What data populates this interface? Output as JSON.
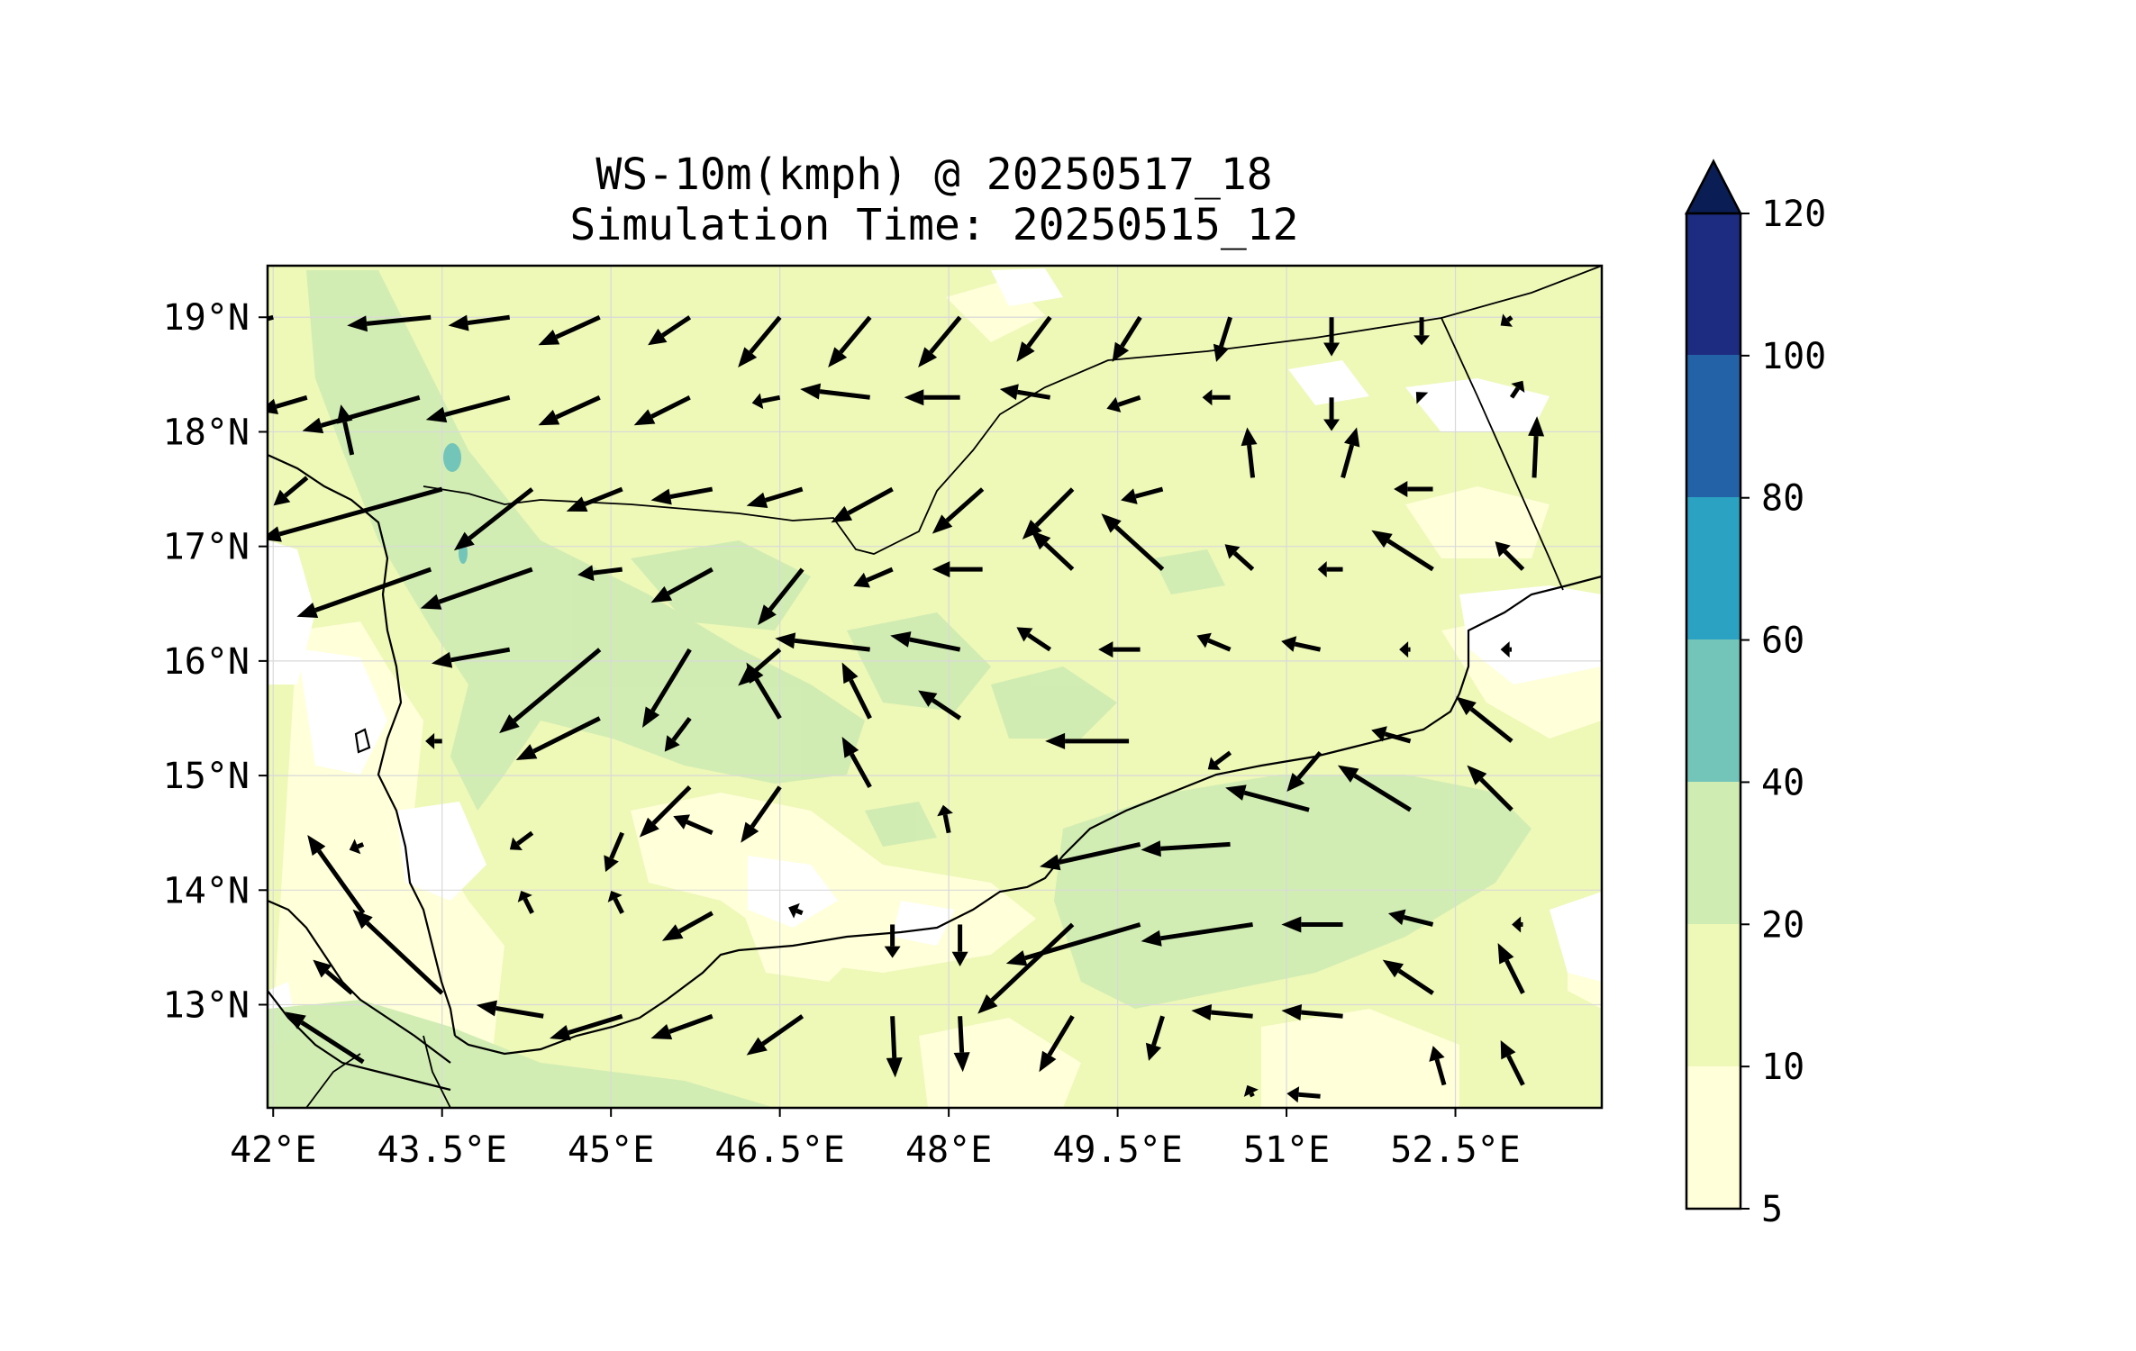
{
  "title": {
    "line1": "WS-10m(kmph) @ 20250517_18",
    "line2": "Simulation Time: 20250515_12"
  },
  "colors": {
    "ws_5_10": "#ffffd9",
    "ws_10_20": "#eef8b7",
    "ws_20_40": "#cfecb2",
    "ws_40_60": "#74c5b9",
    "ws_60_80": "#2ba2c1",
    "ws_80_100": "#2462a8",
    "ws_100_120": "#1d2c80",
    "ws_over_120": "#0a1e55",
    "below_5": "#ffffff"
  },
  "map": {
    "lon_range": [
      41.95,
      53.8
    ],
    "lat_range": [
      12.1,
      19.45
    ],
    "x_ticks": [
      "42°E",
      "43.5°E",
      "45°E",
      "46.5°E",
      "48°E",
      "49.5°E",
      "51°E",
      "52.5°E"
    ],
    "x_tick_values": [
      42,
      43.5,
      45,
      46.5,
      48,
      49.5,
      51,
      52.5
    ],
    "y_ticks": [
      "19°N",
      "18°N",
      "17°N",
      "16°N",
      "15°N",
      "14°N",
      "13°N"
    ],
    "y_tick_values": [
      19,
      18,
      17,
      16,
      15,
      14,
      13
    ]
  },
  "colorbar": {
    "labels": [
      "5",
      "10",
      "20",
      "40",
      "60",
      "80",
      "100",
      "120"
    ],
    "extend": "max"
  },
  "wind_vectors": [
    {
      "lat": 19,
      "lon": 42,
      "u": -37,
      "v": -10
    },
    {
      "lat": 19,
      "lon": 43.4,
      "u": -30,
      "v": -3
    },
    {
      "lat": 19,
      "lon": 44.1,
      "u": -22,
      "v": -3
    },
    {
      "lat": 19,
      "lon": 44.9,
      "u": -22,
      "v": -10
    },
    {
      "lat": 19,
      "lon": 45.7,
      "u": -15,
      "v": -10
    },
    {
      "lat": 19,
      "lon": 46.5,
      "u": -15,
      "v": -18
    },
    {
      "lat": 19,
      "lon": 47.3,
      "u": -15,
      "v": -18
    },
    {
      "lat": 19,
      "lon": 48.1,
      "u": -15,
      "v": -18
    },
    {
      "lat": 19,
      "lon": 48.9,
      "u": -12,
      "v": -16
    },
    {
      "lat": 19,
      "lon": 49.7,
      "u": -10,
      "v": -16
    },
    {
      "lat": 19,
      "lon": 50.5,
      "u": -5,
      "v": -16
    },
    {
      "lat": 19,
      "lon": 51.4,
      "u": 0,
      "v": -14
    },
    {
      "lat": 19,
      "lon": 52.2,
      "u": 0,
      "v": -10
    },
    {
      "lat": 19,
      "lon": 53,
      "u": -4,
      "v": -3
    },
    {
      "lat": 18.3,
      "lon": 42.3,
      "u": -17,
      "v": -5
    },
    {
      "lat": 18.3,
      "lon": 43.3,
      "u": -42,
      "v": -12
    },
    {
      "lat": 18.3,
      "lon": 44.1,
      "u": -30,
      "v": -8
    },
    {
      "lat": 18.3,
      "lon": 44.9,
      "u": -22,
      "v": -10
    },
    {
      "lat": 18.3,
      "lon": 45.7,
      "u": -20,
      "v": -10
    },
    {
      "lat": 18.3,
      "lon": 46.5,
      "u": -10,
      "v": -2
    },
    {
      "lat": 18.3,
      "lon": 47.3,
      "u": -25,
      "v": 3
    },
    {
      "lat": 18.3,
      "lon": 48.1,
      "u": -20,
      "v": 0
    },
    {
      "lat": 18.3,
      "lon": 48.9,
      "u": -18,
      "v": 3
    },
    {
      "lat": 18.3,
      "lon": 49.7,
      "u": -12,
      "v": -4
    },
    {
      "lat": 18.3,
      "lon": 50.5,
      "u": -10,
      "v": 0
    },
    {
      "lat": 18.3,
      "lon": 51.4,
      "u": 0,
      "v": -12
    },
    {
      "lat": 18.3,
      "lon": 52.2,
      "u": -2,
      "v": 2
    },
    {
      "lat": 18.3,
      "lon": 53,
      "u": 4,
      "v": 6
    },
    {
      "lat": 17.8,
      "lon": 42.7,
      "u": -4,
      "v": 18
    },
    {
      "lat": 17.6,
      "lon": 42.3,
      "u": -12,
      "v": -10
    },
    {
      "lat": 17.5,
      "lon": 43.5,
      "u": -65,
      "v": -18
    },
    {
      "lat": 17.5,
      "lon": 44.3,
      "u": -28,
      "v": -22
    },
    {
      "lat": 17.5,
      "lon": 45.1,
      "u": -20,
      "v": -8
    },
    {
      "lat": 17.5,
      "lon": 45.9,
      "u": -22,
      "v": -4
    },
    {
      "lat": 17.5,
      "lon": 46.7,
      "u": -20,
      "v": -6
    },
    {
      "lat": 17.5,
      "lon": 47.5,
      "u": -22,
      "v": -12
    },
    {
      "lat": 17.5,
      "lon": 48.3,
      "u": -18,
      "v": -16
    },
    {
      "lat": 17.5,
      "lon": 49.1,
      "u": -18,
      "v": -18
    },
    {
      "lat": 17.5,
      "lon": 49.9,
      "u": -15,
      "v": -4
    },
    {
      "lat": 17.6,
      "lon": 50.7,
      "u": -2,
      "v": 18
    },
    {
      "lat": 17.6,
      "lon": 51.5,
      "u": 5,
      "v": 18
    },
    {
      "lat": 17.5,
      "lon": 52.3,
      "u": -14,
      "v": 0
    },
    {
      "lat": 17.6,
      "lon": 53.2,
      "u": 1,
      "v": 22
    },
    {
      "lat": 16.8,
      "lon": 43.4,
      "u": -48,
      "v": -17
    },
    {
      "lat": 16.8,
      "lon": 44.3,
      "u": -40,
      "v": -14
    },
    {
      "lat": 16.8,
      "lon": 45.1,
      "u": -16,
      "v": -2
    },
    {
      "lat": 16.8,
      "lon": 45.9,
      "u": -22,
      "v": -12
    },
    {
      "lat": 16.8,
      "lon": 46.7,
      "u": -16,
      "v": -20
    },
    {
      "lat": 16.8,
      "lon": 47.5,
      "u": -14,
      "v": -6
    },
    {
      "lat": 16.8,
      "lon": 48.3,
      "u": -18,
      "v": 0
    },
    {
      "lat": 16.8,
      "lon": 49.1,
      "u": -15,
      "v": 14
    },
    {
      "lat": 16.8,
      "lon": 49.9,
      "u": -22,
      "v": 20
    },
    {
      "lat": 16.8,
      "lon": 50.7,
      "u": -10,
      "v": 9
    },
    {
      "lat": 16.8,
      "lon": 51.5,
      "u": -9,
      "v": 0
    },
    {
      "lat": 16.8,
      "lon": 52.3,
      "u": -22,
      "v": 14
    },
    {
      "lat": 16.8,
      "lon": 53.1,
      "u": -10,
      "v": 10
    },
    {
      "lat": 16.1,
      "lon": 44.1,
      "u": -28,
      "v": -5
    },
    {
      "lat": 16.1,
      "lon": 44.9,
      "u": -36,
      "v": -30
    },
    {
      "lat": 16.1,
      "lon": 45.7,
      "u": -17,
      "v": -28
    },
    {
      "lat": 16.1,
      "lon": 46.5,
      "u": -15,
      "v": -13
    },
    {
      "lat": 16.1,
      "lon": 47.3,
      "u": -34,
      "v": 4
    },
    {
      "lat": 16.1,
      "lon": 48.1,
      "u": -25,
      "v": 5
    },
    {
      "lat": 16.1,
      "lon": 48.9,
      "u": -12,
      "v": 8
    },
    {
      "lat": 16.1,
      "lon": 49.7,
      "u": -15,
      "v": 0
    },
    {
      "lat": 16.1,
      "lon": 50.5,
      "u": -12,
      "v": 5
    },
    {
      "lat": 16.1,
      "lon": 51.3,
      "u": -14,
      "v": 3
    },
    {
      "lat": 16.1,
      "lon": 52.1,
      "u": -4,
      "v": 0
    },
    {
      "lat": 16.1,
      "lon": 53,
      "u": -4,
      "v": 0
    },
    {
      "lat": 15.5,
      "lon": 44.9,
      "u": -30,
      "v": -15
    },
    {
      "lat": 15.5,
      "lon": 45.7,
      "u": -9,
      "v": -12
    },
    {
      "lat": 15.5,
      "lon": 46.5,
      "u": -12,
      "v": 20
    },
    {
      "lat": 15.5,
      "lon": 47.3,
      "u": -10,
      "v": 20
    },
    {
      "lat": 15.5,
      "lon": 48.1,
      "u": -15,
      "v": 10
    },
    {
      "lat": 15.3,
      "lon": 49.6,
      "u": -30,
      "v": 0
    },
    {
      "lat": 15.2,
      "lon": 50.5,
      "u": -8,
      "v": -6
    },
    {
      "lat": 15.2,
      "lon": 51.3,
      "u": -12,
      "v": -14
    },
    {
      "lat": 15.3,
      "lon": 52.1,
      "u": -14,
      "v": 4
    },
    {
      "lat": 15.3,
      "lon": 53,
      "u": -20,
      "v": 16
    },
    {
      "lat": 15.3,
      "lon": 43.5,
      "u": -6,
      "v": 0
    },
    {
      "lat": 14.9,
      "lon": 45.7,
      "u": -18,
      "v": -18
    },
    {
      "lat": 14.9,
      "lon": 46.5,
      "u": -14,
      "v": -20
    },
    {
      "lat": 14.9,
      "lon": 47.3,
      "u": -10,
      "v": 18
    },
    {
      "lat": 14.5,
      "lon": 48.0,
      "u": -2,
      "v": 10
    },
    {
      "lat": 14.7,
      "lon": 51.2,
      "u": -30,
      "v": 8
    },
    {
      "lat": 14.7,
      "lon": 52.1,
      "u": -26,
      "v": 16
    },
    {
      "lat": 14.7,
      "lon": 53,
      "u": -16,
      "v": 16
    },
    {
      "lat": 14.5,
      "lon": 44.3,
      "u": -8,
      "v": -6
    },
    {
      "lat": 14.5,
      "lon": 45.1,
      "u": -6,
      "v": -14
    },
    {
      "lat": 14.5,
      "lon": 45.9,
      "u": -14,
      "v": 6
    },
    {
      "lat": 14.4,
      "lon": 50.5,
      "u": -32,
      "v": -2
    },
    {
      "lat": 14.4,
      "lon": 49.7,
      "u": -36,
      "v": -8
    },
    {
      "lat": 14.4,
      "lon": 42.8,
      "u": -5,
      "v": -2
    },
    {
      "lat": 13.8,
      "lon": 42.8,
      "u": -20,
      "v": 28
    },
    {
      "lat": 13.8,
      "lon": 44.3,
      "u": -4,
      "v": 8
    },
    {
      "lat": 13.8,
      "lon": 45.1,
      "u": -4,
      "v": 8
    },
    {
      "lat": 13.8,
      "lon": 45.9,
      "u": -18,
      "v": -10
    },
    {
      "lat": 13.8,
      "lon": 46.7,
      "u": -5,
      "v": 2
    },
    {
      "lat": 13.7,
      "lon": 47.5,
      "u": 0,
      "v": -12
    },
    {
      "lat": 13.7,
      "lon": 48.1,
      "u": 0,
      "v": -15
    },
    {
      "lat": 13.7,
      "lon": 49.7,
      "u": -48,
      "v": -14
    },
    {
      "lat": 13.7,
      "lon": 50.7,
      "u": -40,
      "v": -6
    },
    {
      "lat": 13.7,
      "lon": 51.5,
      "u": -22,
      "v": 0
    },
    {
      "lat": 13.7,
      "lon": 52.3,
      "u": -16,
      "v": 4
    },
    {
      "lat": 13.7,
      "lon": 53.1,
      "u": -4,
      "v": 0
    },
    {
      "lat": 13.1,
      "lon": 43.5,
      "u": -32,
      "v": 30
    },
    {
      "lat": 13.1,
      "lon": 42.7,
      "u": -14,
      "v": 12
    },
    {
      "lat": 12.9,
      "lon": 44.4,
      "u": -24,
      "v": 4
    },
    {
      "lat": 12.9,
      "lon": 45.1,
      "u": -26,
      "v": -8
    },
    {
      "lat": 12.9,
      "lon": 45.9,
      "u": -22,
      "v": -8
    },
    {
      "lat": 12.9,
      "lon": 46.7,
      "u": -20,
      "v": -14
    },
    {
      "lat": 13.7,
      "lon": 49.1,
      "u": -34,
      "v": -32
    },
    {
      "lat": 12.9,
      "lon": 47.5,
      "u": 1,
      "v": -22
    },
    {
      "lat": 12.9,
      "lon": 48.1,
      "u": 1,
      "v": -20
    },
    {
      "lat": 12.9,
      "lon": 49.1,
      "u": -12,
      "v": -20
    },
    {
      "lat": 12.9,
      "lon": 49.9,
      "u": -5,
      "v": -16
    },
    {
      "lat": 12.9,
      "lon": 50.7,
      "u": -22,
      "v": 2
    },
    {
      "lat": 12.9,
      "lon": 51.5,
      "u": -22,
      "v": 2
    },
    {
      "lat": 13.1,
      "lon": 52.3,
      "u": -18,
      "v": 12
    },
    {
      "lat": 13.1,
      "lon": 53.1,
      "u": -9,
      "v": 18
    },
    {
      "lat": 12.5,
      "lon": 42.8,
      "u": -28,
      "v": 18
    },
    {
      "lat": 12.3,
      "lon": 52.4,
      "u": -4,
      "v": 14
    },
    {
      "lat": 12.3,
      "lon": 53.1,
      "u": -8,
      "v": 16
    },
    {
      "lat": 12.2,
      "lon": 51.3,
      "u": -12,
      "v": 1
    },
    {
      "lat": 12.2,
      "lon": 50.7,
      "u": -2,
      "v": 4
    }
  ]
}
